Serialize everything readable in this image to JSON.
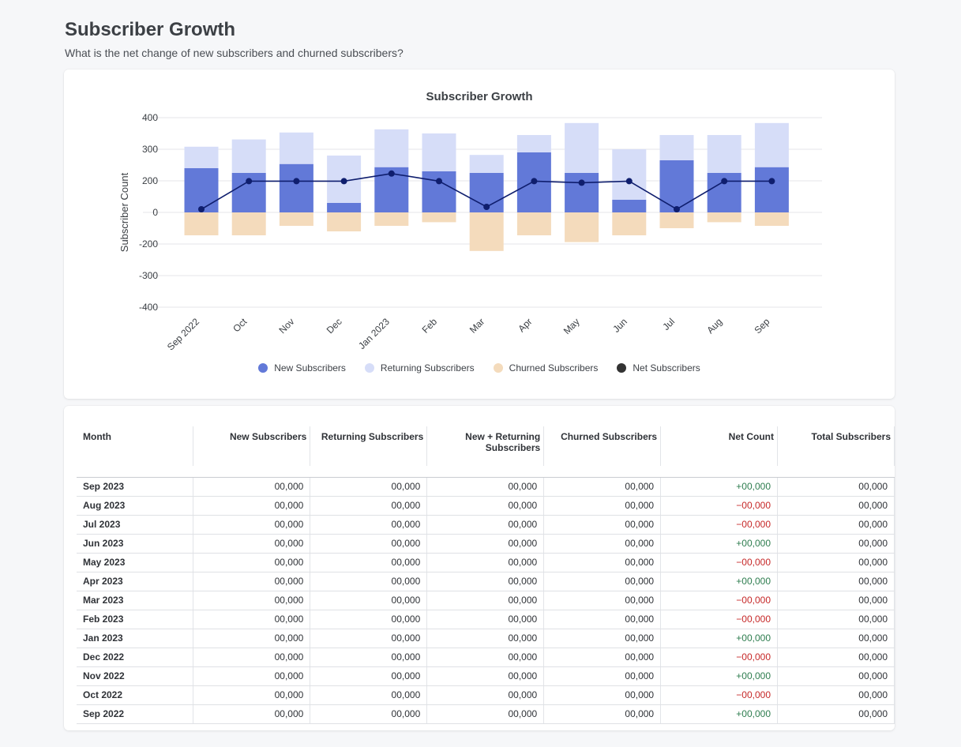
{
  "page": {
    "title": "Subscriber Growth",
    "subtitle": "What is the net change of new subscribers and churned subscribers?"
  },
  "colors": {
    "new": "#6279d8",
    "returning": "#d6ddf8",
    "churned": "#f4dbbc",
    "net_line": "#0f1e6e",
    "net_legend": "#333333",
    "positive": "#2e7d4f",
    "negative": "#c62828"
  },
  "chart_data": {
    "type": "bar",
    "title": "Subscriber Growth",
    "ylabel": "Subscriber Count",
    "xlabel": "",
    "ylim": [
      -400,
      400
    ],
    "yticks": [
      400,
      300,
      200,
      0,
      -200,
      -300,
      -400
    ],
    "grid": true,
    "legend_position": "bottom",
    "categories": [
      "Sep 2022",
      "Oct",
      "Nov",
      "Dec",
      "Jan 2023",
      "Feb",
      "Mar",
      "Apr",
      "May",
      "Jun",
      "Jul",
      "Aug",
      "Sep"
    ],
    "series": [
      {
        "name": "New Subscribers",
        "type": "bar",
        "values": [
          240,
          225,
          253,
          60,
          243,
          230,
          225,
          290,
          225,
          80,
          265,
          225,
          243
        ]
      },
      {
        "name": "Returning Subscribers",
        "type": "bar",
        "values": [
          68,
          106,
          100,
          220,
          120,
          120,
          57,
          55,
          158,
          220,
          80,
          120,
          140
        ]
      },
      {
        "name": "Churned Subscribers",
        "type": "bar",
        "values": [
          -145,
          -145,
          -85,
          -120,
          -85,
          -62,
          -222,
          -145,
          -188,
          -145,
          -100,
          -62,
          -85
        ]
      },
      {
        "name": "Net Subscribers",
        "type": "line",
        "values": [
          20,
          198,
          198,
          198,
          223,
          198,
          35,
          198,
          188,
          198,
          20,
          198,
          198
        ]
      }
    ]
  },
  "table": {
    "columns": [
      "Month",
      "New Subscribers",
      "Returning Subscribers",
      "New + Returning Subscribers",
      "Churned Subscribers",
      "Net Count",
      "Total Subscribers"
    ],
    "rows": [
      {
        "month": "Sep 2023",
        "new": "00,000",
        "returning": "00,000",
        "combined": "00,000",
        "churned": "00,000",
        "net": "+00,000",
        "total": "00,000"
      },
      {
        "month": "Aug 2023",
        "new": "00,000",
        "returning": "00,000",
        "combined": "00,000",
        "churned": "00,000",
        "net": "−00,000",
        "total": "00,000"
      },
      {
        "month": "Jul 2023",
        "new": "00,000",
        "returning": "00,000",
        "combined": "00,000",
        "churned": "00,000",
        "net": "−00,000",
        "total": "00,000"
      },
      {
        "month": "Jun 2023",
        "new": "00,000",
        "returning": "00,000",
        "combined": "00,000",
        "churned": "00,000",
        "net": "+00,000",
        "total": "00,000"
      },
      {
        "month": "May 2023",
        "new": "00,000",
        "returning": "00,000",
        "combined": "00,000",
        "churned": "00,000",
        "net": "−00,000",
        "total": "00,000"
      },
      {
        "month": "Apr 2023",
        "new": "00,000",
        "returning": "00,000",
        "combined": "00,000",
        "churned": "00,000",
        "net": "+00,000",
        "total": "00,000"
      },
      {
        "month": "Mar 2023",
        "new": "00,000",
        "returning": "00,000",
        "combined": "00,000",
        "churned": "00,000",
        "net": "−00,000",
        "total": "00,000"
      },
      {
        "month": "Feb 2023",
        "new": "00,000",
        "returning": "00,000",
        "combined": "00,000",
        "churned": "00,000",
        "net": "−00,000",
        "total": "00,000"
      },
      {
        "month": "Jan 2023",
        "new": "00,000",
        "returning": "00,000",
        "combined": "00,000",
        "churned": "00,000",
        "net": "+00,000",
        "total": "00,000"
      },
      {
        "month": "Dec 2022",
        "new": "00,000",
        "returning": "00,000",
        "combined": "00,000",
        "churned": "00,000",
        "net": "−00,000",
        "total": "00,000"
      },
      {
        "month": "Nov 2022",
        "new": "00,000",
        "returning": "00,000",
        "combined": "00,000",
        "churned": "00,000",
        "net": "+00,000",
        "total": "00,000"
      },
      {
        "month": "Oct 2022",
        "new": "00,000",
        "returning": "00,000",
        "combined": "00,000",
        "churned": "00,000",
        "net": "−00,000",
        "total": "00,000"
      },
      {
        "month": "Sep 2022",
        "new": "00,000",
        "returning": "00,000",
        "combined": "00,000",
        "churned": "00,000",
        "net": "+00,000",
        "total": "00,000"
      }
    ]
  }
}
